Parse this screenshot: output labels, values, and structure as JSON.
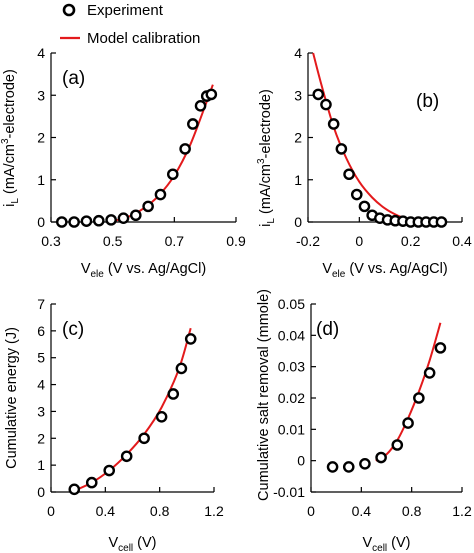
{
  "legend": {
    "items": [
      {
        "label": "Experiment",
        "marker": "circle-open"
      },
      {
        "label": "Model calibration",
        "marker": "line",
        "color": "#e31a1c"
      }
    ]
  },
  "colors": {
    "model_line": "#e31a1c",
    "marker_edge": "#000000",
    "marker_fill": "#ffffff",
    "axes": "#000000"
  },
  "chart_data": [
    {
      "panel": "(a)",
      "type": "scatter",
      "xlabel": "V",
      "xlabel_sub": "ele",
      "xlabel_rest": " (V vs. Ag/AgCl)",
      "ylabel": "i",
      "ylabel_sub": "L",
      "ylabel_rest": " (mA/cm",
      "ylabel_sup": "3",
      "ylabel_tail": "-electrode)",
      "xlim": [
        0.3,
        0.9
      ],
      "ylim": [
        0,
        4
      ],
      "xticks": [
        "0.3",
        "0.5",
        "0.7",
        "0.9"
      ],
      "yticks": [
        "0",
        "1",
        "2",
        "3",
        "4"
      ],
      "series": [
        {
          "name": "Experiment",
          "x": [
            0.335,
            0.375,
            0.415,
            0.455,
            0.495,
            0.535,
            0.575,
            0.615,
            0.655,
            0.695,
            0.735,
            0.76,
            0.785,
            0.805,
            0.82
          ],
          "y": [
            0.0,
            0.0,
            0.02,
            0.03,
            0.05,
            0.09,
            0.16,
            0.37,
            0.65,
            1.13,
            1.73,
            2.32,
            2.75,
            2.98,
            3.02
          ]
        },
        {
          "name": "Model calibration",
          "x": [
            0.5,
            0.55,
            0.6,
            0.65,
            0.7,
            0.75,
            0.8,
            0.825
          ],
          "y": [
            0.02,
            0.12,
            0.32,
            0.63,
            1.1,
            1.8,
            2.75,
            3.25
          ]
        }
      ]
    },
    {
      "panel": "(b)",
      "type": "scatter",
      "xlabel": "V",
      "xlabel_sub": "ele",
      "xlabel_rest": " (V vs. Ag/AgCl)",
      "ylabel": "i",
      "ylabel_sub": "L",
      "ylabel_rest": " (mA/cm",
      "ylabel_sup": "3",
      "ylabel_tail": "-electrode)",
      "xlim": [
        -0.2,
        0.4
      ],
      "ylim": [
        0,
        4
      ],
      "xticks": [
        "-0.2",
        "0",
        "0.2",
        "0.4"
      ],
      "yticks": [
        "0",
        "1",
        "2",
        "3",
        "4"
      ],
      "series": [
        {
          "name": "Experiment",
          "x": [
            -0.16,
            -0.13,
            -0.1,
            -0.07,
            -0.04,
            -0.01,
            0.02,
            0.05,
            0.08,
            0.11,
            0.14,
            0.17,
            0.2,
            0.23,
            0.26,
            0.29,
            0.32
          ],
          "y": [
            3.02,
            2.78,
            2.32,
            1.73,
            1.13,
            0.65,
            0.37,
            0.16,
            0.09,
            0.05,
            0.03,
            0.02,
            0.0,
            0.0,
            0.0,
            0.0,
            0.0
          ]
        },
        {
          "name": "Model calibration",
          "x": [
            -0.18,
            -0.15,
            -0.1,
            -0.05,
            0.0,
            0.05,
            0.1,
            0.15,
            0.2,
            0.22
          ],
          "y": [
            4.0,
            3.3,
            2.25,
            1.5,
            0.95,
            0.58,
            0.32,
            0.15,
            0.04,
            0.0
          ]
        }
      ]
    },
    {
      "panel": "(c)",
      "type": "scatter",
      "xlabel": "V",
      "xlabel_sub": "cell",
      "xlabel_rest": " (V)",
      "ylabel": "Cumulative energy (J)",
      "xlim": [
        0,
        1.4
      ],
      "ylim": [
        0,
        7
      ],
      "xticks": [
        "0",
        "0.4",
        "0.8",
        "1.2"
      ],
      "yticks": [
        "0",
        "1",
        "2",
        "3",
        "4",
        "5",
        "6",
        "7"
      ],
      "series": [
        {
          "name": "Experiment",
          "x": [
            0.2,
            0.35,
            0.5,
            0.65,
            0.8,
            0.95,
            1.05,
            1.12,
            1.2
          ],
          "y": [
            0.1,
            0.35,
            0.8,
            1.33,
            2.0,
            2.8,
            3.65,
            4.6,
            5.7
          ]
        },
        {
          "name": "Model calibration",
          "x": [
            0.2,
            0.35,
            0.5,
            0.65,
            0.8,
            0.95,
            1.1,
            1.2
          ],
          "y": [
            0.05,
            0.35,
            0.8,
            1.4,
            2.15,
            3.15,
            4.6,
            6.1
          ]
        }
      ]
    },
    {
      "panel": "(d)",
      "type": "scatter",
      "xlabel": "V",
      "xlabel_sub": "cell",
      "xlabel_rest": " (V)",
      "ylabel": "Cumulative salt removal (mmole)",
      "xlim": [
        0,
        1.4
      ],
      "ylim": [
        -0.01,
        0.05
      ],
      "xticks": [
        "0",
        "0.4",
        "0.8",
        "1.2"
      ],
      "yticks": [
        "-0.01",
        "0",
        "0.01",
        "0.02",
        "0.03",
        "0.04",
        "0.05"
      ],
      "series": [
        {
          "name": "Experiment",
          "x": [
            0.2,
            0.35,
            0.5,
            0.65,
            0.8,
            0.9,
            1.0,
            1.1,
            1.2
          ],
          "y": [
            -0.002,
            -0.002,
            -0.001,
            0.001,
            0.005,
            0.012,
            0.02,
            0.028,
            0.036
          ]
        },
        {
          "name": "Model calibration",
          "x": [
            0.6,
            0.7,
            0.8,
            0.9,
            1.0,
            1.1,
            1.2
          ],
          "y": [
            0.0,
            0.002,
            0.0065,
            0.0135,
            0.022,
            0.032,
            0.044
          ]
        }
      ]
    }
  ]
}
